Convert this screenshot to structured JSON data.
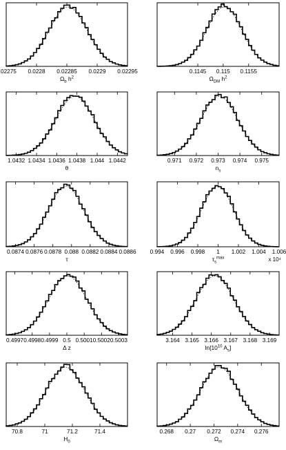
{
  "chart_data": [
    {
      "type": "line",
      "title": "",
      "xlabel": "Ωb h²",
      "ylabel": "",
      "xlim": [
        0.02275,
        0.02295
      ],
      "ylim": [
        0,
        1.05
      ],
      "x_ticks": [
        "0.02275",
        "0.0228",
        "0.02285",
        "0.0229",
        "0.02295"
      ],
      "x_tick_values": [
        0.02275,
        0.0228,
        0.02285,
        0.0229,
        0.02295
      ],
      "peak": 0.022852,
      "width": 3.15e-05,
      "series": [
        {
          "style": "solid-histogram",
          "bins": 40,
          "range": [
            0.02275,
            0.02295
          ]
        },
        {
          "style": "dotted-curve"
        }
      ]
    },
    {
      "type": "line",
      "title": "",
      "xlabel": "ΩDM h²",
      "ylabel": "",
      "xlim": [
        0.1137,
        0.1161
      ],
      "ylim": [
        0,
        1.05
      ],
      "x_ticks": [
        "0.1145",
        "0.115",
        "0.1155"
      ],
      "x_tick_values": [
        0.1145,
        0.115,
        0.1155
      ],
      "peak": 0.11502,
      "width": 0.00035,
      "series": [
        {
          "style": "solid-histogram",
          "bins": 40,
          "range": [
            0.1137,
            0.1161
          ]
        },
        {
          "style": "dotted-curve"
        }
      ]
    },
    {
      "type": "line",
      "title": "",
      "xlabel": "θ",
      "ylabel": "",
      "xlim": [
        1.0431,
        1.0443
      ],
      "ylim": [
        0,
        1.05
      ],
      "x_ticks": [
        "1.0432",
        "1.0434",
        "1.0436",
        "1.0438",
        "1.044",
        "1.0442"
      ],
      "x_tick_values": [
        1.0432,
        1.0434,
        1.0436,
        1.0438,
        1.044,
        1.0442
      ],
      "peak": 1.04378,
      "width": 0.00019,
      "series": [
        {
          "style": "solid-histogram",
          "bins": 40,
          "range": [
            1.0431,
            1.0443
          ]
        },
        {
          "style": "dotted-curve"
        }
      ]
    },
    {
      "type": "line",
      "title": "",
      "xlabel": "ns",
      "ylabel": "",
      "xlim": [
        0.9702,
        0.9758
      ],
      "ylim": [
        0,
        1.05
      ],
      "x_ticks": [
        "0.971",
        "0.972",
        "0.973",
        "0.974",
        "0.975"
      ],
      "x_tick_values": [
        0.971,
        0.972,
        0.973,
        0.974,
        0.975
      ],
      "peak": 0.97305,
      "width": 0.00085,
      "series": [
        {
          "style": "solid-histogram",
          "bins": 40,
          "range": [
            0.9702,
            0.9758
          ]
        },
        {
          "style": "dotted-curve"
        }
      ]
    },
    {
      "type": "line",
      "title": "",
      "xlabel": "τ",
      "ylabel": "",
      "xlim": [
        0.0873,
        0.0886
      ],
      "ylim": [
        0,
        1.05
      ],
      "x_ticks": [
        "0.0874",
        "0.0876",
        "0.0878",
        "0.088",
        "0.0882",
        "0.0884",
        "0.0886"
      ],
      "x_tick_values": [
        0.0874,
        0.0876,
        0.0878,
        0.088,
        0.0882,
        0.0884,
        0.0886
      ],
      "peak": 0.08794,
      "width": 0.00019,
      "series": [
        {
          "style": "solid-histogram",
          "bins": 40,
          "range": [
            0.0873,
            0.0886
          ]
        },
        {
          "style": "dotted-curve"
        }
      ]
    },
    {
      "type": "line",
      "title": "",
      "xlabel": "τsmax",
      "ylabel": "",
      "exponent_label": "x 10⁴",
      "xlim": [
        0.994,
        1.006
      ],
      "ylim": [
        0,
        1.05
      ],
      "x_ticks": [
        "0.994",
        "0.996",
        "0.998",
        "1",
        "1.002",
        "1.004",
        "1.006"
      ],
      "x_tick_values": [
        0.994,
        0.996,
        0.998,
        1.0,
        1.002,
        1.004,
        1.006
      ],
      "peak": 0.99995,
      "width": 0.0016,
      "series": [
        {
          "style": "solid-histogram",
          "bins": 40,
          "range": [
            0.994,
            1.006
          ]
        },
        {
          "style": "dotted-curve"
        }
      ]
    },
    {
      "type": "line",
      "title": "",
      "xlabel": "Δ z",
      "ylabel": "",
      "xlim": [
        0.49965,
        0.50035
      ],
      "ylim": [
        0,
        1.05
      ],
      "x_ticks": [
        "0.4997",
        "0.4998",
        "0.4999",
        "0.5",
        "0.5001",
        "0.5002",
        "0.5003"
      ],
      "x_tick_values": [
        0.4997,
        0.4998,
        0.4999,
        0.5,
        0.5001,
        0.5002,
        0.5003
      ],
      "peak": 0.500005,
      "width": 0.00011,
      "series": [
        {
          "style": "solid-histogram",
          "bins": 40,
          "range": [
            0.49965,
            0.50035
          ]
        },
        {
          "style": "dotted-curve"
        }
      ]
    },
    {
      "type": "line",
      "title": "",
      "xlabel": "ln[10¹⁰ As]",
      "ylabel": "",
      "xlim": [
        3.1632,
        3.1695
      ],
      "ylim": [
        0,
        1.05
      ],
      "x_ticks": [
        "3.164",
        "3.165",
        "3.166",
        "3.167",
        "3.168",
        "3.169"
      ],
      "x_tick_values": [
        3.164,
        3.165,
        3.166,
        3.167,
        3.168,
        3.169
      ],
      "peak": 3.16618,
      "width": 0.00098,
      "series": [
        {
          "style": "solid-histogram",
          "bins": 40,
          "range": [
            3.1632,
            3.1695
          ]
        },
        {
          "style": "dotted-curve"
        }
      ]
    },
    {
      "type": "line",
      "title": "",
      "xlabel": "H0",
      "ylabel": "",
      "xlim": [
        70.72,
        71.6
      ],
      "ylim": [
        0,
        1.05
      ],
      "x_ticks": [
        "70.8",
        "71",
        "71.2",
        "71.4"
      ],
      "x_tick_values": [
        70.8,
        71.0,
        71.2,
        71.4
      ],
      "peak": 71.15,
      "width": 0.14,
      "series": [
        {
          "style": "solid-histogram",
          "bins": 40,
          "range": [
            70.72,
            71.6
          ]
        },
        {
          "style": "dotted-curve"
        }
      ]
    },
    {
      "type": "line",
      "title": "",
      "xlabel": "Ωm",
      "ylabel": "",
      "xlim": [
        0.2672,
        0.2775
      ],
      "ylim": [
        0,
        1.05
      ],
      "x_ticks": [
        "0.268",
        "0.27",
        "0.272",
        "0.274",
        "0.276"
      ],
      "x_tick_values": [
        0.268,
        0.27,
        0.272,
        0.274,
        0.276
      ],
      "peak": 0.27245,
      "width": 0.0016,
      "series": [
        {
          "style": "solid-histogram",
          "bins": 40,
          "range": [
            0.2672,
            0.2775
          ]
        },
        {
          "style": "dotted-curve"
        }
      ]
    }
  ],
  "colors": {
    "line": "#000000",
    "frame": "#000000",
    "background": "#ffffff"
  }
}
